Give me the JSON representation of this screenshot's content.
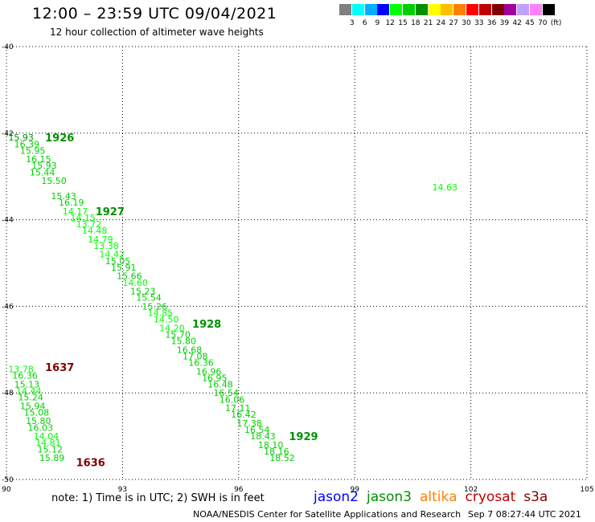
{
  "header": {
    "title": "12:00 – 23:59 UTC 09/04/2021",
    "subtitle": "12 hour collection of altimeter wave heights"
  },
  "colorbar": {
    "colors": [
      "#808080",
      "#00ffff",
      "#00b0ff",
      "#0000ff",
      "#00ff00",
      "#00d000",
      "#009000",
      "#ffff00",
      "#ffc000",
      "#ff8000",
      "#ff0000",
      "#c00000",
      "#800000",
      "#a000a0",
      "#c0a0ff",
      "#ff80ff",
      "#000000"
    ],
    "labels": [
      "3",
      "6",
      "9",
      "12",
      "15",
      "18",
      "21",
      "24",
      "27",
      "30",
      "33",
      "36",
      "39",
      "42",
      "45",
      "70"
    ],
    "unit": "(ft)"
  },
  "footer": {
    "note": "note: 1) Time is in UTC; 2) SWH is in feet",
    "satellites": [
      {
        "name": "jason2",
        "color": "#0000ff"
      },
      {
        "name": "jason3",
        "color": "#009000"
      },
      {
        "name": "altika",
        "color": "#ff8000"
      },
      {
        "name": "cryosat",
        "color": "#c00000"
      },
      {
        "name": "s3a",
        "color": "#800000"
      }
    ],
    "credit": "NOAA/NESDIS Center for Satellite Applications and Research",
    "timestamp": "Sep  7 08:27:44 UTC 2021"
  },
  "chart_data": {
    "type": "scatter",
    "title": "12:00 – 23:59 UTC 09/04/2021",
    "subtitle": "12 hour collection of altimeter wave heights",
    "unit": "ft",
    "xlim": [
      90,
      105
    ],
    "ylim": [
      -50,
      -40
    ],
    "xticks": [
      90,
      93,
      96,
      99,
      102,
      105
    ],
    "yticks": [
      -40,
      -42,
      -44,
      -46,
      -48,
      -50
    ],
    "xtick_labels": [
      "90",
      "93",
      "96",
      "99",
      "102",
      "105"
    ],
    "ytick_labels": [
      "-40",
      "-42",
      "-44",
      "-46",
      "-48",
      "-50"
    ],
    "grid": true,
    "tracks": [
      {
        "label": "1926",
        "lon": 91.0,
        "lat": -42.1,
        "color": "#009000"
      },
      {
        "label": "1927",
        "lon": 92.3,
        "lat": -43.8,
        "color": "#009000"
      },
      {
        "label": "1928",
        "lon": 94.8,
        "lat": -46.4,
        "color": "#009000"
      },
      {
        "label": "1929",
        "lon": 97.3,
        "lat": -49.0,
        "color": "#009000"
      },
      {
        "label": "1637",
        "lon": 91.0,
        "lat": -47.4,
        "color": "#800000"
      },
      {
        "label": "1636",
        "lon": 91.8,
        "lat": -49.6,
        "color": "#800000"
      }
    ],
    "series": [
      {
        "name": "jason3",
        "color": "#009000",
        "points": [
          {
            "lon": 90.05,
            "lat": -42.1,
            "swh": 15.93,
            "color": "#009000"
          },
          {
            "lon": 90.2,
            "lat": -42.25,
            "swh": 16.39,
            "color": "#00d000"
          },
          {
            "lon": 90.35,
            "lat": -42.4,
            "swh": 15.95,
            "color": "#00d000"
          },
          {
            "lon": 90.5,
            "lat": -42.6,
            "swh": 16.15,
            "color": "#00d000"
          },
          {
            "lon": 90.65,
            "lat": -42.75,
            "swh": 15.93,
            "color": "#00d000"
          },
          {
            "lon": 90.6,
            "lat": -42.9,
            "swh": 15.44,
            "color": "#00d000"
          },
          {
            "lon": 90.9,
            "lat": -43.1,
            "swh": 15.5,
            "color": "#00d000"
          },
          {
            "lon": 101.0,
            "lat": -43.25,
            "swh": 14.63,
            "color": "#00ff00"
          },
          {
            "lon": 91.15,
            "lat": -43.45,
            "swh": 15.43,
            "color": "#00d000"
          },
          {
            "lon": 91.35,
            "lat": -43.6,
            "swh": 16.19,
            "color": "#00d000"
          },
          {
            "lon": 91.45,
            "lat": -43.8,
            "swh": 14.17,
            "color": "#00ff00"
          },
          {
            "lon": 91.65,
            "lat": -43.95,
            "swh": 14.15,
            "color": "#00ff00"
          },
          {
            "lon": 91.8,
            "lat": -44.1,
            "swh": 13.72,
            "color": "#00ff00"
          },
          {
            "lon": 91.95,
            "lat": -44.25,
            "swh": 14.48,
            "color": "#00ff00"
          },
          {
            "lon": 92.1,
            "lat": -44.45,
            "swh": 14.79,
            "color": "#00ff00"
          },
          {
            "lon": 92.25,
            "lat": -44.6,
            "swh": 13.38,
            "color": "#00ff00"
          },
          {
            "lon": 92.4,
            "lat": -44.8,
            "swh": 14.42,
            "color": "#00ff00"
          },
          {
            "lon": 92.55,
            "lat": -44.95,
            "swh": 15.05,
            "color": "#00d000"
          },
          {
            "lon": 92.7,
            "lat": -45.1,
            "swh": 15.91,
            "color": "#00d000"
          },
          {
            "lon": 92.85,
            "lat": -45.3,
            "swh": 15.66,
            "color": "#00d000"
          },
          {
            "lon": 93.0,
            "lat": -45.45,
            "swh": 14.6,
            "color": "#00ff00"
          },
          {
            "lon": 93.2,
            "lat": -45.65,
            "swh": 15.23,
            "color": "#00d000"
          },
          {
            "lon": 93.35,
            "lat": -45.8,
            "swh": 15.54,
            "color": "#00d000"
          },
          {
            "lon": 93.5,
            "lat": -46.0,
            "swh": 15.26,
            "color": "#00d000"
          },
          {
            "lon": 93.65,
            "lat": -46.15,
            "swh": 14.85,
            "color": "#00ff00"
          },
          {
            "lon": 93.8,
            "lat": -46.3,
            "swh": 14.5,
            "color": "#00ff00"
          },
          {
            "lon": 93.95,
            "lat": -46.5,
            "swh": 14.2,
            "color": "#00ff00"
          },
          {
            "lon": 94.1,
            "lat": -46.65,
            "swh": 15.7,
            "color": "#00d000"
          },
          {
            "lon": 94.25,
            "lat": -46.8,
            "swh": 15.8,
            "color": "#00d000"
          },
          {
            "lon": 94.4,
            "lat": -47.0,
            "swh": 16.68,
            "color": "#00d000"
          },
          {
            "lon": 94.55,
            "lat": -47.15,
            "swh": 17.08,
            "color": "#00d000"
          },
          {
            "lon": 94.7,
            "lat": -47.3,
            "swh": 16.36,
            "color": "#00d000"
          },
          {
            "lon": 94.9,
            "lat": -47.5,
            "swh": 16.96,
            "color": "#00d000"
          },
          {
            "lon": 95.05,
            "lat": -47.65,
            "swh": 16.95,
            "color": "#00d000"
          },
          {
            "lon": 95.2,
            "lat": -47.8,
            "swh": 16.48,
            "color": "#00d000"
          },
          {
            "lon": 95.35,
            "lat": -48.0,
            "swh": 16.54,
            "color": "#00d000"
          },
          {
            "lon": 95.5,
            "lat": -48.15,
            "swh": 16.06,
            "color": "#00d000"
          },
          {
            "lon": 95.65,
            "lat": -48.35,
            "swh": 17.11,
            "color": "#00d000"
          },
          {
            "lon": 95.8,
            "lat": -48.5,
            "swh": 16.42,
            "color": "#00d000"
          },
          {
            "lon": 95.95,
            "lat": -48.7,
            "swh": 17.38,
            "color": "#00d000"
          },
          {
            "lon": 96.15,
            "lat": -48.85,
            "swh": 16.54,
            "color": "#00d000"
          },
          {
            "lon": 96.3,
            "lat": -49.0,
            "swh": 18.43,
            "color": "#00d000"
          },
          {
            "lon": 96.5,
            "lat": -49.2,
            "swh": 18.1,
            "color": "#00d000"
          },
          {
            "lon": 96.65,
            "lat": -49.35,
            "swh": 18.16,
            "color": "#00d000"
          },
          {
            "lon": 96.8,
            "lat": -49.5,
            "swh": 18.52,
            "color": "#00d000"
          }
        ]
      },
      {
        "name": "cryosat",
        "color": "#c00000",
        "points": [
          {
            "lon": 90.05,
            "lat": -47.45,
            "swh": 13.78,
            "color": "#00ff00"
          },
          {
            "lon": 90.15,
            "lat": -47.6,
            "swh": 16.36,
            "color": "#00d000"
          },
          {
            "lon": 90.2,
            "lat": -47.8,
            "swh": 15.13,
            "color": "#00d000"
          },
          {
            "lon": 90.25,
            "lat": -47.95,
            "swh": 14.44,
            "color": "#00ff00"
          },
          {
            "lon": 90.3,
            "lat": -48.1,
            "swh": 15.24,
            "color": "#00d000"
          },
          {
            "lon": 90.35,
            "lat": -48.3,
            "swh": 15.94,
            "color": "#00d000"
          },
          {
            "lon": 90.45,
            "lat": -48.45,
            "swh": 15.08,
            "color": "#00d000"
          },
          {
            "lon": 90.5,
            "lat": -48.65,
            "swh": 15.8,
            "color": "#00d000"
          },
          {
            "lon": 90.55,
            "lat": -48.8,
            "swh": 16.03,
            "color": "#00d000"
          },
          {
            "lon": 90.7,
            "lat": -49.0,
            "swh": 14.04,
            "color": "#00ff00"
          },
          {
            "lon": 90.75,
            "lat": -49.15,
            "swh": 14.81,
            "color": "#00ff00"
          },
          {
            "lon": 90.8,
            "lat": -49.3,
            "swh": 15.12,
            "color": "#00d000"
          },
          {
            "lon": 90.85,
            "lat": -49.5,
            "swh": 15.89,
            "color": "#00d000"
          }
        ]
      }
    ]
  }
}
